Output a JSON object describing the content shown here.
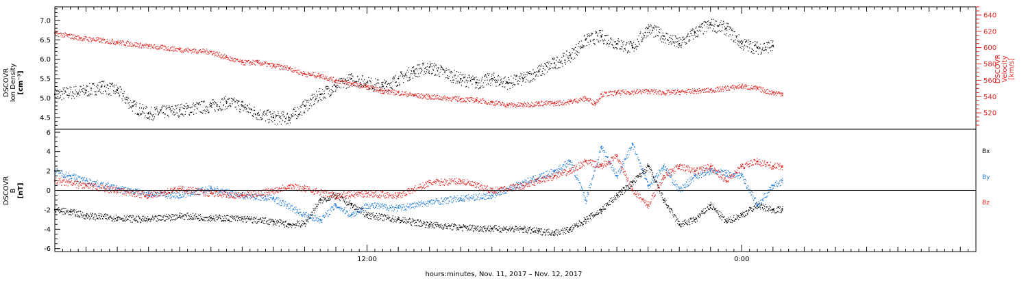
{
  "colors": {
    "black": "#000000",
    "red": "#e0211e",
    "blue": "#1f7ad6",
    "frame": "#000000"
  },
  "xaxis": {
    "label": "hours:minutes, Nov. 11, 2017 – Nov. 12, 2017",
    "range_hours": [
      2,
      31.5
    ],
    "tick_labels": [
      {
        "hour": 12,
        "label": "12:00"
      },
      {
        "hour": 24,
        "label": "0:00"
      }
    ],
    "minor_tick_step_hours": 1
  },
  "chart_data": [
    {
      "type": "scatter",
      "title": "",
      "x_unit": "hours since Nov. 11, 2017 00:00",
      "left_axis": {
        "label_lines": [
          "DSCOVR",
          "Ion Density",
          "[cm⁻³]"
        ],
        "ylim": [
          4.2,
          7.35
        ],
        "ticks": [
          "4.5",
          "5.0",
          "5.5",
          "6.0",
          "6.5",
          "7.0"
        ]
      },
      "right_axis": {
        "label_lines": [
          "DSCOVR",
          "Velocity",
          "[km/s]"
        ],
        "ylim": [
          500,
          650
        ],
        "ticks": [
          "520",
          "540",
          "560",
          "580",
          "600",
          "620",
          "640"
        ],
        "color": "red"
      },
      "series": [
        {
          "key": "density",
          "axis": "left",
          "color": "black",
          "points": [
            [
              2.0,
              5.1
            ],
            [
              3.0,
              5.2
            ],
            [
              3.5,
              5.3
            ],
            [
              4.0,
              5.2
            ],
            [
              4.5,
              4.8
            ],
            [
              5.0,
              4.6
            ],
            [
              6.0,
              4.7
            ],
            [
              7.0,
              4.8
            ],
            [
              7.5,
              4.9
            ],
            [
              8.0,
              4.8
            ],
            [
              8.5,
              4.6
            ],
            [
              9.0,
              4.5
            ],
            [
              9.5,
              4.5
            ],
            [
              10.0,
              4.8
            ],
            [
              10.5,
              5.1
            ],
            [
              11.0,
              5.3
            ],
            [
              11.5,
              5.5
            ],
            [
              12.0,
              5.4
            ],
            [
              12.5,
              5.3
            ],
            [
              13.0,
              5.5
            ],
            [
              13.5,
              5.7
            ],
            [
              14.0,
              5.8
            ],
            [
              15.0,
              5.5
            ],
            [
              15.5,
              5.4
            ],
            [
              16.0,
              5.5
            ],
            [
              16.5,
              5.4
            ],
            [
              17.0,
              5.5
            ],
            [
              17.5,
              5.7
            ],
            [
              18.0,
              5.9
            ],
            [
              18.5,
              6.1
            ],
            [
              19.0,
              6.5
            ],
            [
              19.5,
              6.6
            ],
            [
              20.0,
              6.4
            ],
            [
              20.5,
              6.3
            ],
            [
              21.0,
              6.8
            ],
            [
              21.5,
              6.6
            ],
            [
              22.0,
              6.4
            ],
            [
              22.5,
              6.7
            ],
            [
              23.0,
              6.9
            ],
            [
              23.5,
              6.8
            ],
            [
              24.0,
              6.4
            ],
            [
              24.5,
              6.3
            ],
            [
              25.0,
              6.35
            ]
          ]
        },
        {
          "key": "velocity",
          "axis": "right",
          "color": "red",
          "points": [
            [
              2.0,
              618
            ],
            [
              2.8,
              612
            ],
            [
              4.0,
              607
            ],
            [
              5.0,
              602
            ],
            [
              6.0,
              598
            ],
            [
              7.0,
              595
            ],
            [
              7.5,
              588
            ],
            [
              8.0,
              582
            ],
            [
              8.5,
              582
            ],
            [
              9.0,
              578
            ],
            [
              9.5,
              575
            ],
            [
              10.0,
              568
            ],
            [
              10.5,
              566
            ],
            [
              11.0,
              560
            ],
            [
              11.5,
              556
            ],
            [
              12.0,
              552
            ],
            [
              12.5,
              547
            ],
            [
              13.0,
              545
            ],
            [
              13.5,
              542
            ],
            [
              14.0,
              540
            ],
            [
              15.0,
              537
            ],
            [
              15.5,
              536
            ],
            [
              16.0,
              533
            ],
            [
              16.5,
              530
            ],
            [
              17.0,
              530
            ],
            [
              17.5,
              532
            ],
            [
              18.0,
              532
            ],
            [
              18.5,
              534
            ],
            [
              19.0,
              538
            ],
            [
              19.3,
              532
            ],
            [
              19.5,
              543
            ],
            [
              20.0,
              545
            ],
            [
              21.0,
              547
            ],
            [
              21.5,
              545
            ],
            [
              22.0,
              546
            ],
            [
              22.5,
              547
            ],
            [
              23.0,
              548
            ],
            [
              24.0,
              553
            ],
            [
              24.5,
              550
            ],
            [
              25.0,
              545
            ],
            [
              25.3,
              544
            ]
          ]
        }
      ]
    },
    {
      "type": "scatter",
      "title": "",
      "x_unit": "hours since Nov. 11, 2017 00:00",
      "left_axis": {
        "label_lines": [
          "DSCOVR",
          "B",
          "[nT]"
        ],
        "ylim": [
          -6.3,
          6.3
        ],
        "ticks": [
          "-6",
          "-4",
          "-2",
          "0",
          "2",
          "4",
          "6"
        ]
      },
      "legend": [
        {
          "name": "Bx",
          "color": "black"
        },
        {
          "name": "By",
          "color": "blue"
        },
        {
          "name": "Bz",
          "color": "red"
        }
      ],
      "series": [
        {
          "key": "bx",
          "name": "Bx",
          "color": "black",
          "points": [
            [
              2.0,
              -2.0
            ],
            [
              2.5,
              -2.2
            ],
            [
              3.0,
              -2.6
            ],
            [
              4.0,
              -2.8
            ],
            [
              5.0,
              -3.0
            ],
            [
              6.0,
              -2.6
            ],
            [
              7.0,
              -2.8
            ],
            [
              8.0,
              -2.9
            ],
            [
              9.0,
              -3.2
            ],
            [
              9.5,
              -3.5
            ],
            [
              10.0,
              -3.4
            ],
            [
              10.5,
              -1.0
            ],
            [
              11.0,
              -0.5
            ],
            [
              11.5,
              -1.5
            ],
            [
              12.0,
              -2.5
            ],
            [
              13.0,
              -3.0
            ],
            [
              14.0,
              -3.5
            ],
            [
              15.0,
              -3.8
            ],
            [
              16.0,
              -3.9
            ],
            [
              17.0,
              -4.0
            ],
            [
              17.5,
              -4.2
            ],
            [
              18.0,
              -4.3
            ],
            [
              18.5,
              -4.0
            ],
            [
              19.0,
              -3.0
            ],
            [
              19.5,
              -2.0
            ],
            [
              20.0,
              -0.5
            ],
            [
              20.5,
              0.8
            ],
            [
              21.0,
              2.5
            ],
            [
              21.5,
              -1.0
            ],
            [
              22.0,
              -3.5
            ],
            [
              22.5,
              -3.0
            ],
            [
              23.0,
              -1.5
            ],
            [
              23.5,
              -3.2
            ],
            [
              24.0,
              -2.5
            ],
            [
              24.5,
              -1.5
            ],
            [
              25.0,
              -2.0
            ],
            [
              25.3,
              -1.9
            ]
          ]
        },
        {
          "key": "by",
          "name": "By",
          "color": "blue",
          "points": [
            [
              2.0,
              2.0
            ],
            [
              2.5,
              1.5
            ],
            [
              3.0,
              1.0
            ],
            [
              4.0,
              0.2
            ],
            [
              5.0,
              -0.3
            ],
            [
              6.0,
              -0.5
            ],
            [
              7.0,
              0.2
            ],
            [
              8.0,
              -0.5
            ],
            [
              9.0,
              -0.8
            ],
            [
              10.0,
              -2.5
            ],
            [
              10.5,
              -3.0
            ],
            [
              11.0,
              -1.5
            ],
            [
              11.5,
              -2.5
            ],
            [
              12.0,
              -1.5
            ],
            [
              13.0,
              -1.8
            ],
            [
              14.0,
              -1.2
            ],
            [
              15.0,
              -0.8
            ],
            [
              16.0,
              -0.5
            ],
            [
              17.0,
              0.8
            ],
            [
              18.0,
              2.0
            ],
            [
              18.5,
              3.0
            ],
            [
              19.0,
              -1.0
            ],
            [
              19.5,
              4.5
            ],
            [
              20.0,
              1.5
            ],
            [
              20.5,
              4.8
            ],
            [
              21.0,
              0.5
            ],
            [
              21.5,
              2.5
            ],
            [
              22.0,
              0.0
            ],
            [
              22.5,
              1.5
            ],
            [
              23.0,
              2.0
            ],
            [
              23.5,
              1.8
            ],
            [
              24.0,
              1.5
            ],
            [
              24.5,
              -1.5
            ],
            [
              25.0,
              0.5
            ],
            [
              25.3,
              1.0
            ]
          ]
        },
        {
          "key": "bz",
          "name": "Bz",
          "color": "red",
          "points": [
            [
              2.0,
              1.0
            ],
            [
              3.0,
              0.5
            ],
            [
              4.0,
              0.0
            ],
            [
              5.0,
              -0.5
            ],
            [
              6.0,
              0.2
            ],
            [
              7.0,
              -0.3
            ],
            [
              8.0,
              -0.5
            ],
            [
              9.0,
              0.0
            ],
            [
              9.5,
              0.5
            ],
            [
              10.0,
              0.2
            ],
            [
              11.0,
              -0.5
            ],
            [
              12.0,
              -0.3
            ],
            [
              13.0,
              -0.5
            ],
            [
              14.0,
              0.8
            ],
            [
              15.0,
              1.0
            ],
            [
              16.0,
              0.0
            ],
            [
              17.0,
              0.5
            ],
            [
              17.5,
              1.0
            ],
            [
              18.0,
              1.5
            ],
            [
              18.5,
              2.0
            ],
            [
              19.0,
              3.0
            ],
            [
              19.5,
              2.5
            ],
            [
              20.0,
              3.5
            ],
            [
              20.5,
              0.0
            ],
            [
              21.0,
              -1.5
            ],
            [
              21.5,
              1.5
            ],
            [
              22.0,
              2.5
            ],
            [
              22.5,
              2.0
            ],
            [
              23.0,
              2.5
            ],
            [
              23.5,
              1.0
            ],
            [
              24.0,
              2.5
            ],
            [
              24.5,
              3.0
            ],
            [
              25.0,
              2.5
            ],
            [
              25.3,
              2.5
            ]
          ]
        }
      ]
    }
  ]
}
